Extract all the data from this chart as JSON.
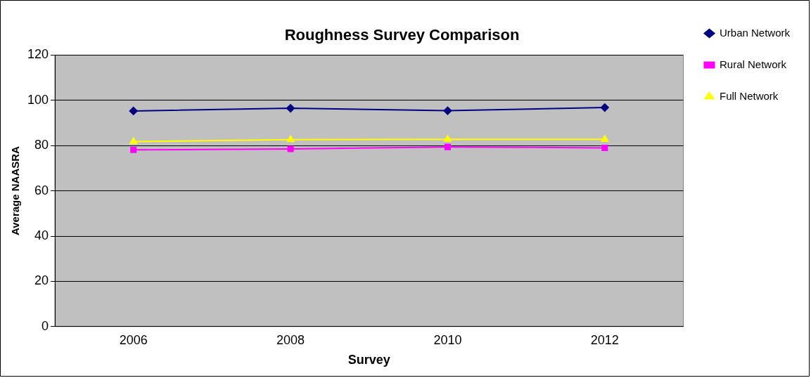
{
  "chart_data": {
    "type": "line",
    "title": "Roughness Survey Comparison",
    "xlabel": "Survey",
    "ylabel": "Average NAASRA",
    "categories": [
      "2006",
      "2008",
      "2010",
      "2012"
    ],
    "series": [
      {
        "name": "Urban Network",
        "color": "#000080",
        "marker": "diamond",
        "values": [
          95.3,
          96.5,
          95.4,
          96.8
        ]
      },
      {
        "name": "Rural Network",
        "color": "#ff00ff",
        "marker": "square",
        "values": [
          78.1,
          78.5,
          79.4,
          79.0
        ]
      },
      {
        "name": "Full Network",
        "color": "#ffff00",
        "marker": "triangle",
        "values": [
          81.8,
          82.6,
          82.8,
          82.8
        ]
      }
    ],
    "ylim": [
      0,
      120
    ],
    "yticks": [
      0,
      20,
      40,
      60,
      80,
      100,
      120
    ],
    "grid": "y",
    "legend": "right",
    "line_style": "solid"
  }
}
